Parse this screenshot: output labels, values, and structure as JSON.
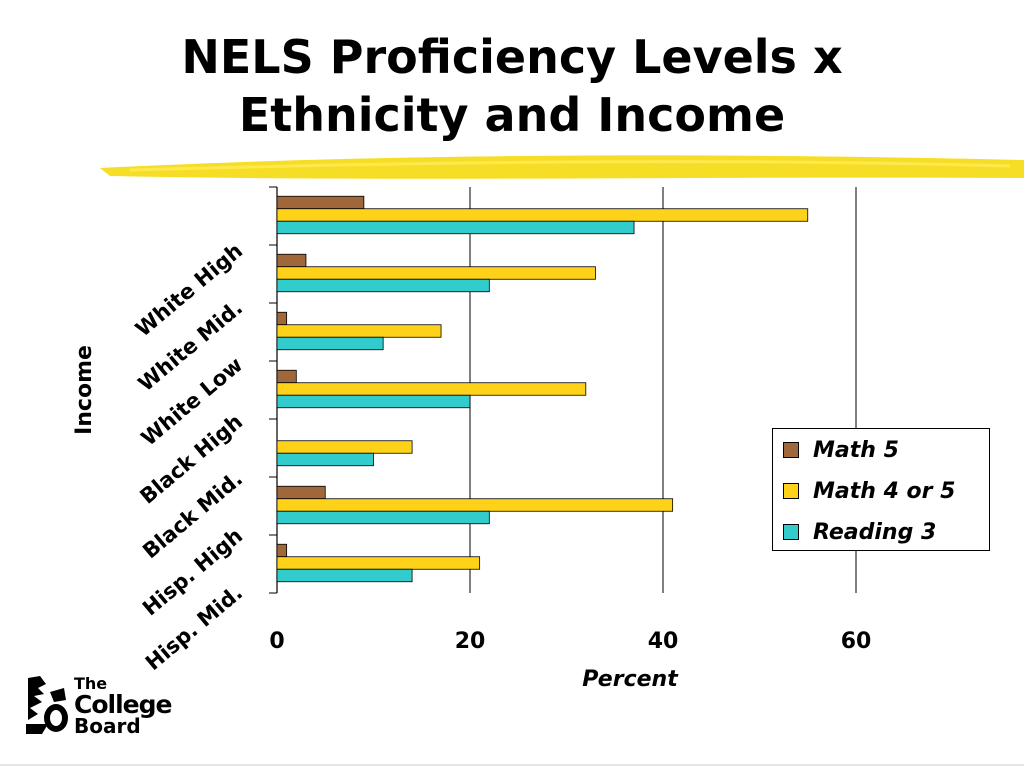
{
  "slide": {
    "title_line1": "NELS Proficiency Levels x",
    "title_line2": "Ethnicity and Income"
  },
  "logo": {
    "line1": "The",
    "line2": "College",
    "line3": "Board"
  },
  "colors": {
    "highlight_stroke": "#f5d800",
    "math5": "#a0673a",
    "math45": "#ffd21a",
    "reading3": "#33cccc"
  },
  "chart_data": {
    "type": "bar",
    "orientation": "horizontal",
    "categories": [
      "White High",
      "White Mid.",
      "White Low",
      "Black High",
      "Black Mid.",
      "Hisp. High",
      "Hisp. Mid."
    ],
    "series": [
      {
        "name": "Math 5",
        "values": [
          9,
          3,
          1,
          2,
          0,
          5,
          1
        ]
      },
      {
        "name": "Math 4 or 5",
        "values": [
          55,
          33,
          17,
          32,
          14,
          41,
          21
        ]
      },
      {
        "name": "Reading 3",
        "values": [
          37,
          22,
          11,
          20,
          10,
          22,
          14
        ]
      }
    ],
    "xlabel": "Percent",
    "ylabel": "Income",
    "xlim": [
      0,
      60
    ],
    "xticks": [
      "0",
      "20",
      "40",
      "60"
    ],
    "grid": true,
    "legend_position": "right"
  }
}
